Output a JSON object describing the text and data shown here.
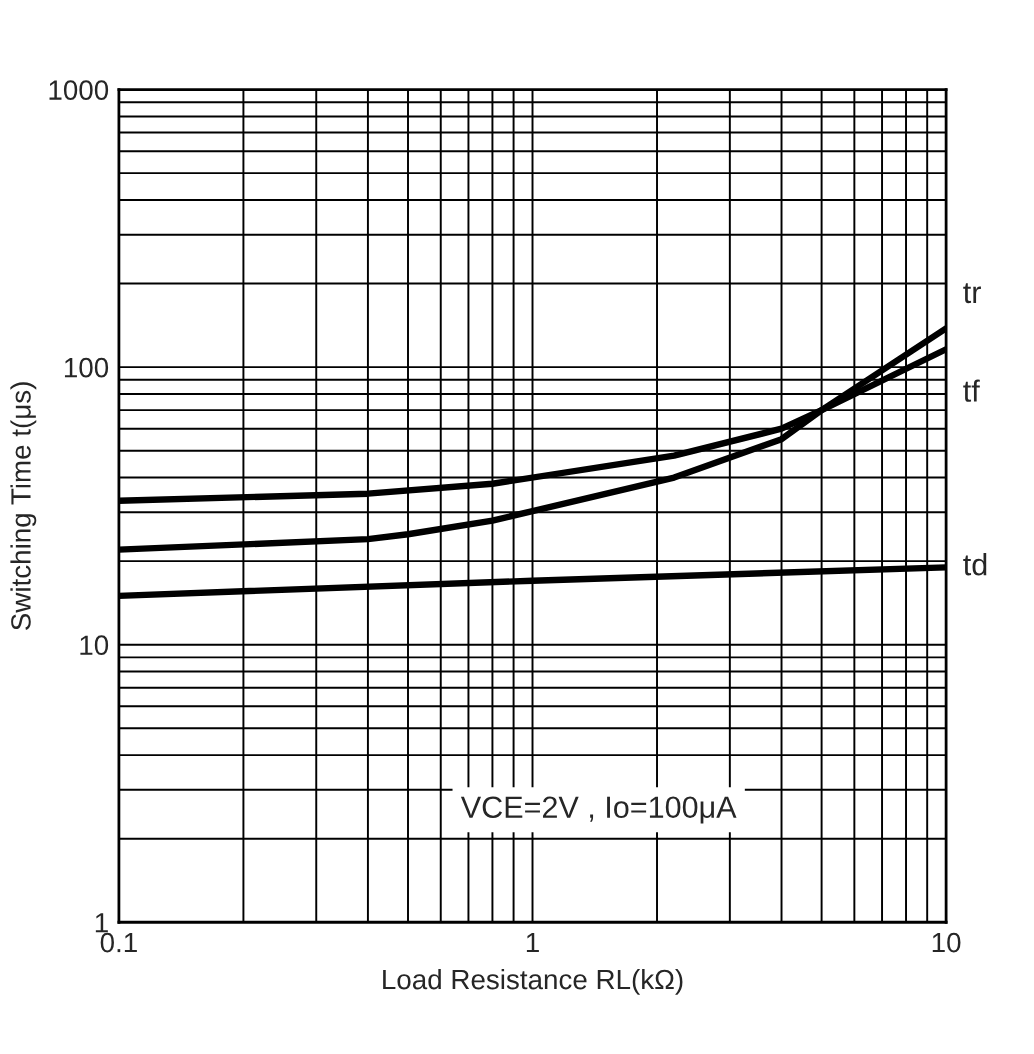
{
  "chart_data": {
    "type": "line",
    "xlabel": "Load Resistance RL(kΩ)",
    "ylabel": "Switching Time t(μs)",
    "log": "xy",
    "grid": true,
    "legend": false,
    "xlim": [
      0.1,
      10
    ],
    "ylim": [
      1,
      1000
    ],
    "xticks": [
      0.1,
      1,
      10
    ],
    "yticks": [
      1,
      10,
      100,
      1000
    ],
    "annotations": [
      "VCE=2V , Io=100μA"
    ],
    "series": [
      {
        "name": "tr",
        "color": "#000000",
        "x": [
          0.1,
          0.4,
          0.8,
          2.2,
          4,
          5,
          10
        ],
        "values": [
          33,
          35,
          38,
          48,
          60,
          70,
          138
        ]
      },
      {
        "name": "tf",
        "color": "#000000",
        "x": [
          0.1,
          0.4,
          0.5,
          0.8,
          2.2,
          4,
          5,
          10
        ],
        "values": [
          22,
          24,
          25,
          28,
          40,
          55,
          70,
          116
        ]
      },
      {
        "name": "td",
        "color": "#000000",
        "x": [
          0.1,
          1,
          10
        ],
        "values": [
          15,
          17,
          19
        ]
      }
    ]
  }
}
